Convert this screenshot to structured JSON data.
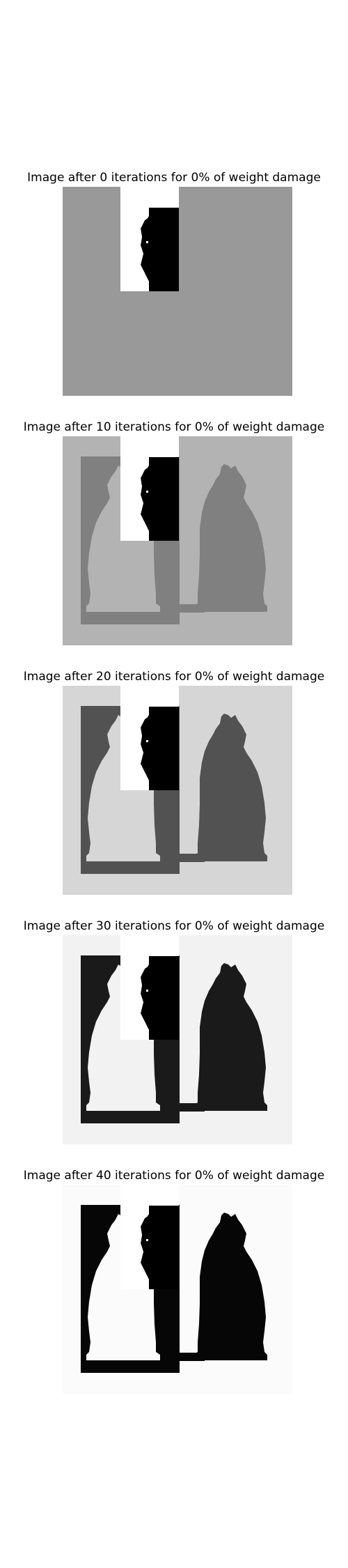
{
  "figure": {
    "panels": [
      {
        "title": "Image after 0 iterations for 0% of weight damage",
        "iteration": 0,
        "damage_percent": 0,
        "background_gray": "#999999",
        "figure_gray": "#999999",
        "show_cats": false
      },
      {
        "title": "Image after 10 iterations for 0% of weight damage",
        "iteration": 10,
        "damage_percent": 0,
        "background_gray": "#b3b3b3",
        "figure_gray": "#808080",
        "show_cats": true
      },
      {
        "title": "Image after 20 iterations for 0% of weight damage",
        "iteration": 20,
        "damage_percent": 0,
        "background_gray": "#d6d6d6",
        "figure_gray": "#525252",
        "show_cats": true
      },
      {
        "title": "Image after 30 iterations for 0% of weight damage",
        "iteration": 30,
        "damage_percent": 0,
        "background_gray": "#f2f2f2",
        "figure_gray": "#1a1a1a",
        "show_cats": true
      },
      {
        "title": "Image after 40 iterations for 0% of weight damage",
        "iteration": 40,
        "damage_percent": 0,
        "background_gray": "#fbfbfb",
        "figure_gray": "#060606",
        "show_cats": true
      }
    ],
    "cue_patch": {
      "white": "#ffffff",
      "black": "#000000"
    }
  }
}
